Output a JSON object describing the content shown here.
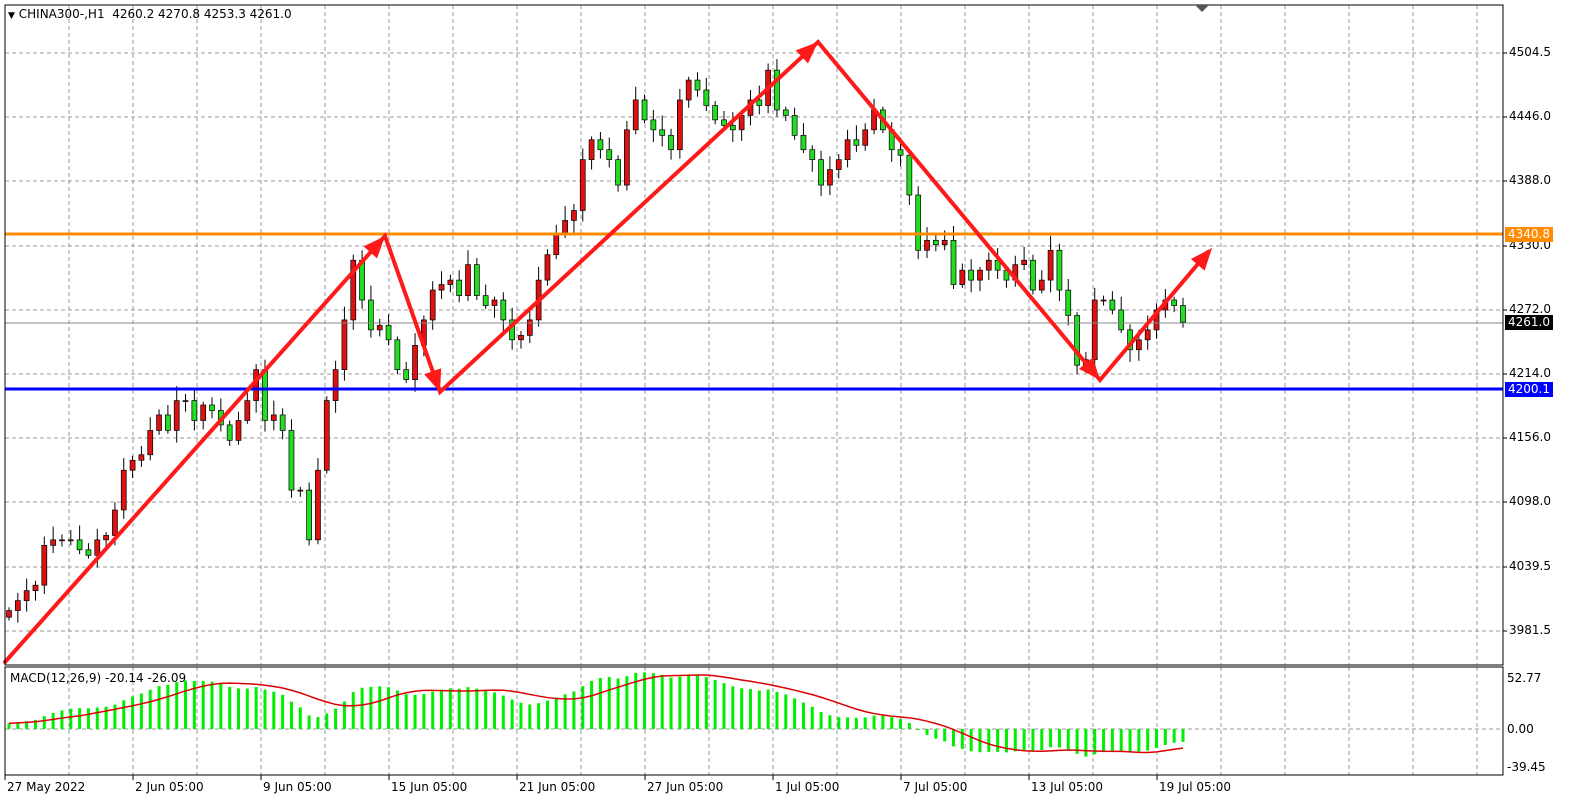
{
  "header": {
    "symbol": "CHINA300-,H1",
    "ohlc": "4260.2 4270.8 4253.3 4261.0",
    "menu_icon": "triangle-down-icon"
  },
  "price_axis": {
    "ticks": [
      "4504.5",
      "4446.0",
      "4388.0",
      "4330.0",
      "4272.0",
      "4214.0",
      "4156.0",
      "4098.0",
      "4039.5",
      "3981.5"
    ]
  },
  "levels": {
    "resistance": {
      "value": "4340.8",
      "color": "#ff8c00"
    },
    "support": {
      "value": "4200.1",
      "color": "#0000ff"
    },
    "current": {
      "value": "4261.0",
      "color": "#000000"
    }
  },
  "time_axis": {
    "ticks": [
      "27 May 2022",
      "2 Jun 05:00",
      "9 Jun 05:00",
      "15 Jun 05:00",
      "21 Jun 05:00",
      "27 Jun 05:00",
      "1 Jul 05:00",
      "7 Jul 05:00",
      "13 Jul 05:00",
      "19 Jul 05:00"
    ]
  },
  "macd": {
    "label": "MACD(12,26,9) -20.14 -26.09",
    "ticks": [
      "52.77",
      "0.00",
      "-39.45"
    ],
    "histogram_color": "#00ee00",
    "signal_color": "#dd0000"
  },
  "colors": {
    "bull_candle": "#dd1111",
    "bear_candle": "#22dd22",
    "trend_arrows": "#ff1a1a"
  },
  "chart_data": {
    "type": "candlestick",
    "timeframe": "H1",
    "closes": [
      4000,
      4009,
      4018,
      4023,
      4059,
      4064,
      4064,
      4064,
      4055,
      4050,
      4064,
      4068,
      4091,
      4127,
      4136,
      4141,
      4163,
      4177,
      4163,
      4190,
      4190,
      4172,
      4186,
      4181,
      4168,
      4154,
      4172,
      4190,
      4218,
      4172,
      4177,
      4163,
      4109,
      4109,
      4064,
      4127,
      4190,
      4218,
      4263,
      4317,
      4281,
      4254,
      4258,
      4245,
      4218,
      4209,
      4240,
      4263,
      4290,
      4295,
      4299,
      4285,
      4313,
      4285,
      4276,
      4281,
      4263,
      4245,
      4249,
      4263,
      4299,
      4322,
      4340,
      4353,
      4362,
      4408,
      4426,
      4417,
      4408,
      4385,
      4435,
      4462,
      4444,
      4435,
      4430,
      4417,
      4462,
      4480,
      4471,
      4457,
      4444,
      4439,
      4435,
      4448,
      4462,
      4457,
      4489,
      4453,
      4448,
      4430,
      4417,
      4408,
      4385,
      4399,
      4408,
      4426,
      4421,
      4435,
      4453,
      4435,
      4417,
      4412,
      4376,
      4326,
      4335,
      4331,
      4335,
      4295,
      4308,
      4299,
      4308,
      4317,
      4308,
      4299,
      4313,
      4317,
      4290,
      4299,
      4326,
      4290,
      4267,
      4222,
      4227,
      4281,
      4281,
      4272,
      4254,
      4236,
      4245,
      4254,
      4272,
      4281,
      4276,
      4261
    ],
    "ylim": [
      3953,
      4550
    ]
  }
}
